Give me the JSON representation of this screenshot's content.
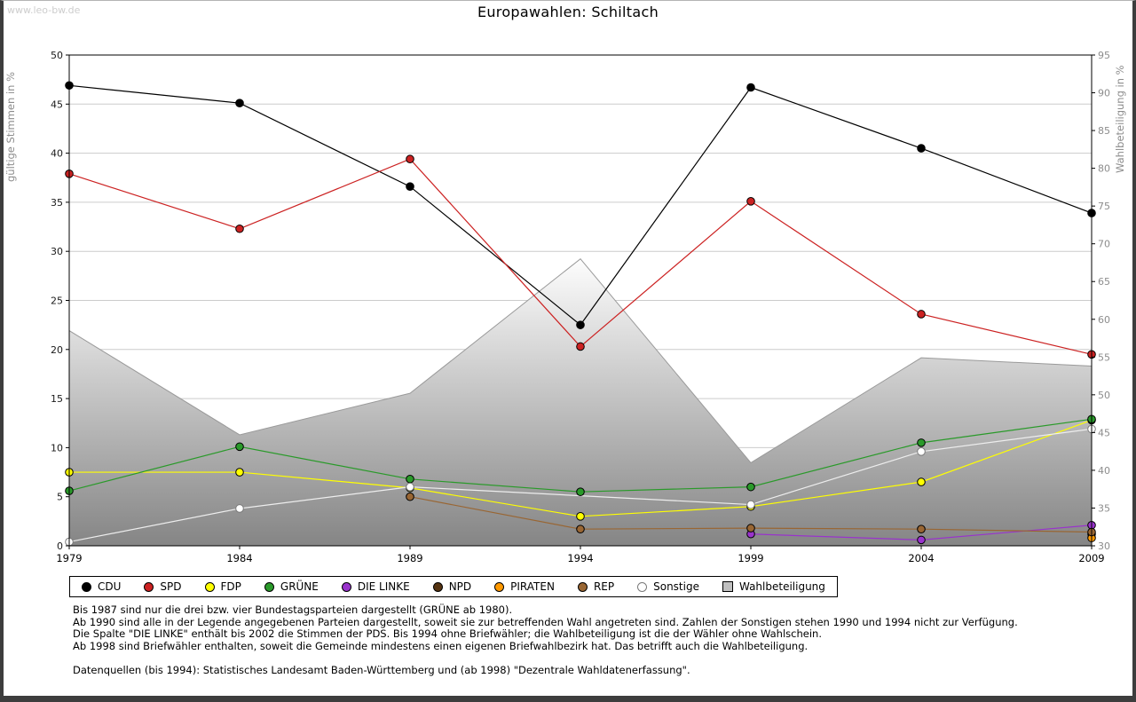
{
  "watermark": "www.leo-bw.de",
  "title": "Europawahlen: Schiltach",
  "chart_data": {
    "type": "line",
    "title": "Europawahlen: Schiltach",
    "x": [
      "1979",
      "1984",
      "1989",
      "1994",
      "1999",
      "2004",
      "2009"
    ],
    "grid": "horizontal",
    "legend_position": "bottom",
    "left_axis": {
      "label": "gültige Stimmen in %",
      "ylim": [
        0,
        50
      ],
      "tick_step": 5
    },
    "right_axis": {
      "label": "Wahlbeteiligung in %",
      "ylim": [
        30,
        95
      ],
      "tick_step": 5
    },
    "colors": {
      "grid": "#cccccc",
      "plot_border": "#000000",
      "area_top": "#fdfdfd",
      "area_bottom": "#858585",
      "area_outline": "#9a9a9a"
    },
    "series": [
      {
        "name": "CDU",
        "axis": "left",
        "color": "#000000",
        "marker_stroke": "#000000",
        "values": [
          46.9,
          45.1,
          36.6,
          22.5,
          46.7,
          40.5,
          33.9
        ]
      },
      {
        "name": "SPD",
        "axis": "left",
        "color": "#cc2222",
        "marker_stroke": "#000000",
        "values": [
          37.9,
          32.3,
          39.4,
          20.3,
          35.1,
          23.6,
          19.5
        ]
      },
      {
        "name": "FDP",
        "axis": "left",
        "color": "#ffff00",
        "marker_stroke": "#000000",
        "values": [
          7.5,
          7.5,
          5.9,
          3.0,
          4.0,
          6.5,
          12.8
        ]
      },
      {
        "name": "GRÜNE",
        "axis": "left",
        "color": "#2a9a2a",
        "marker_stroke": "#000000",
        "values": [
          5.6,
          10.1,
          6.8,
          5.5,
          6.0,
          10.5,
          12.9
        ]
      },
      {
        "name": "DIE LINKE",
        "axis": "left",
        "color": "#9933cc",
        "marker_stroke": "#000000",
        "values": [
          null,
          null,
          null,
          null,
          1.2,
          0.6,
          2.1
        ]
      },
      {
        "name": "NPD",
        "axis": "left",
        "color": "#553311",
        "marker_stroke": "#000000",
        "values": [
          null,
          null,
          null,
          null,
          null,
          null,
          1.2
        ]
      },
      {
        "name": "PIRATEN",
        "axis": "left",
        "color": "#ff9900",
        "marker_stroke": "#000000",
        "values": [
          null,
          null,
          null,
          null,
          null,
          null,
          0.8
        ]
      },
      {
        "name": "REP",
        "axis": "left",
        "color": "#996633",
        "marker_stroke": "#000000",
        "values": [
          null,
          null,
          5.0,
          1.7,
          1.8,
          1.7,
          1.4
        ]
      },
      {
        "name": "Sonstige",
        "axis": "left",
        "color": "#ededed",
        "marker_fill": "#ffffff",
        "marker_stroke": "#7a7a7a",
        "values": [
          0.4,
          3.8,
          6.0,
          null,
          4.2,
          9.6,
          11.9
        ]
      },
      {
        "name": "Wahlbeteiligung",
        "type": "area",
        "axis": "right",
        "color": "#b8b8b8",
        "swatch": "#c0c0c0",
        "marker_stroke": "#000000",
        "values": [
          58.5,
          44.7,
          50.2,
          68.0,
          41.0,
          54.9,
          53.8
        ]
      }
    ]
  },
  "footnotes": [
    "Bis 1987 sind nur die drei bzw. vier Bundestagsparteien dargestellt (GRÜNE ab 1980).",
    "Ab 1990 sind alle in der Legende angegebenen Parteien dargestellt, soweit sie zur betreffenden Wahl angetreten sind. Zahlen der Sonstigen stehen 1990 und 1994 nicht zur Verfügung.",
    "Die Spalte \"DIE LINKE\" enthält bis 2002 die Stimmen der PDS. Bis 1994 ohne Briefwähler; die Wahlbeteiligung ist die der Wähler ohne Wahlschein.",
    "Ab 1998 sind Briefwähler enthalten, soweit die Gemeinde mindestens einen eigenen Briefwahlbezirk hat. Das betrifft auch die Wahlbeteiligung.",
    "",
    "Datenquellen (bis 1994): Statistisches Landesamt Baden-Württemberg und (ab 1998) \"Dezentrale Wahldatenerfassung\"."
  ]
}
